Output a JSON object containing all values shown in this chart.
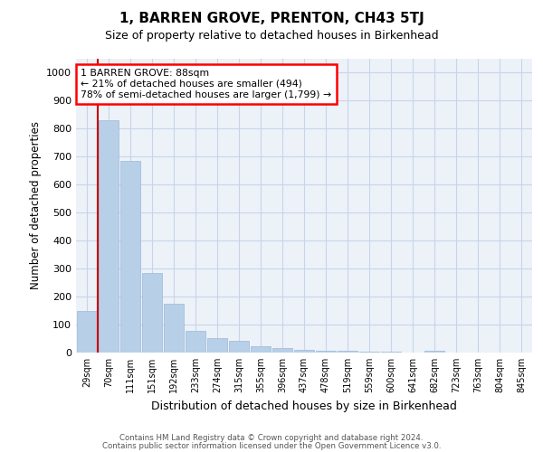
{
  "title": "1, BARREN GROVE, PRENTON, CH43 5TJ",
  "subtitle": "Size of property relative to detached houses in Birkenhead",
  "xlabel": "Distribution of detached houses by size in Birkenhead",
  "ylabel": "Number of detached properties",
  "categories": [
    "29sqm",
    "70sqm",
    "111sqm",
    "151sqm",
    "192sqm",
    "233sqm",
    "274sqm",
    "315sqm",
    "355sqm",
    "396sqm",
    "437sqm",
    "478sqm",
    "519sqm",
    "559sqm",
    "600sqm",
    "641sqm",
    "682sqm",
    "723sqm",
    "763sqm",
    "804sqm",
    "845sqm"
  ],
  "values": [
    148,
    830,
    685,
    283,
    175,
    78,
    52,
    42,
    22,
    15,
    10,
    8,
    5,
    4,
    3,
    0,
    8,
    0,
    0,
    0,
    0
  ],
  "bar_color": "#b8cfe8",
  "bar_edge_color": "#9ab8d8",
  "grid_color": "#c8d4e8",
  "vline_color": "#cc0000",
  "annotation_line1": "1 BARREN GROVE: 88sqm",
  "annotation_line2": "← 21% of detached houses are smaller (494)",
  "annotation_line3": "78% of semi-detached houses are larger (1,799) →",
  "annotation_box_color": "red",
  "ylim": [
    0,
    1050
  ],
  "yticks": [
    0,
    100,
    200,
    300,
    400,
    500,
    600,
    700,
    800,
    900,
    1000
  ],
  "footer1": "Contains HM Land Registry data © Crown copyright and database right 2024.",
  "footer2": "Contains public sector information licensed under the Open Government Licence v3.0.",
  "background_color": "#edf2f9",
  "title_fontsize": 11,
  "subtitle_fontsize": 9
}
